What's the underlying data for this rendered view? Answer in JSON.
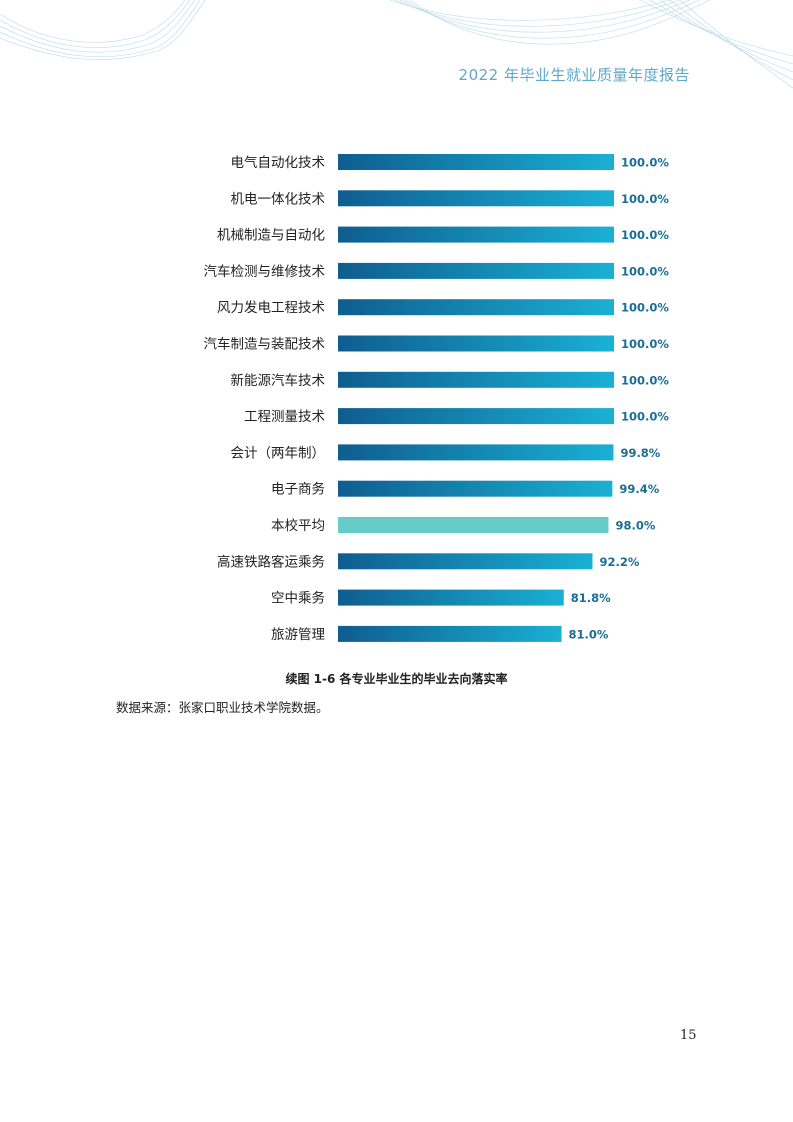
{
  "header": {
    "report_title": "2022 年毕业生就业质量年度报告"
  },
  "chart_data": {
    "type": "bar",
    "orientation": "horizontal",
    "categories": [
      "电气自动化技术",
      "机电一体化技术",
      "机械制造与自动化",
      "汽车检测与维修技术",
      "风力发电工程技术",
      "汽车制造与装配技术",
      "新能源汽车技术",
      "工程测量技术",
      "会计（两年制）",
      "电子商务",
      "本校平均",
      "高速铁路客运乘务",
      "空中乘务",
      "旅游管理"
    ],
    "values": [
      100.0,
      100.0,
      100.0,
      100.0,
      100.0,
      100.0,
      100.0,
      100.0,
      99.8,
      99.4,
      98.0,
      92.2,
      81.8,
      81.0
    ],
    "value_labels": [
      "100.0%",
      "100.0%",
      "100.0%",
      "100.0%",
      "100.0%",
      "100.0%",
      "100.0%",
      "100.0%",
      "99.8%",
      "99.4%",
      "98.0%",
      "92.2%",
      "81.8%",
      "81.0%"
    ],
    "highlight_index": 10,
    "xlim": [
      0,
      100
    ],
    "title": "续图 1-6 各专业毕业生的毕业去向落实率",
    "colors": {
      "bar_start": "#0f5d8f",
      "bar_end": "#1ab0d4",
      "highlight": "#66ccc8",
      "value_text": "#1a6e94"
    }
  },
  "footer": {
    "source": "数据来源：张家口职业技术学院数据。",
    "page_number": "15"
  }
}
